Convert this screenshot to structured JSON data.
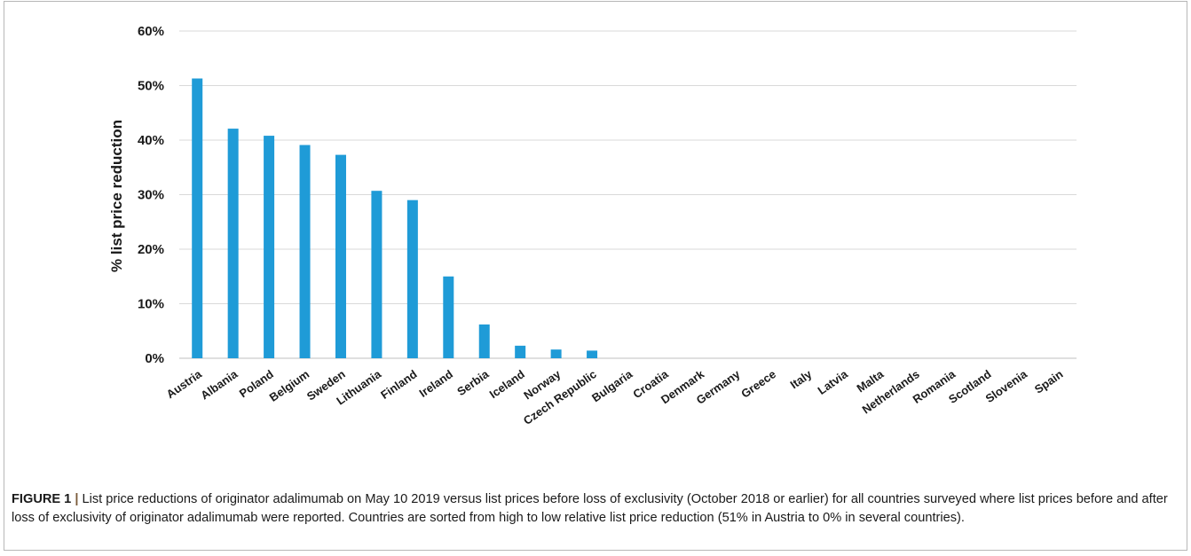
{
  "chart_data": {
    "type": "bar",
    "title": "",
    "xlabel": "",
    "ylabel": "% list price reduction",
    "ylim": [
      0,
      60
    ],
    "yticks": [
      "0%",
      "10%",
      "20%",
      "30%",
      "40%",
      "50%",
      "60%"
    ],
    "categories": [
      "Austria",
      "Albania",
      "Poland",
      "Belgium",
      "Sweden",
      "Lithuania",
      "Finland",
      "Ireland",
      "Serbia",
      "Iceland",
      "Norway",
      "Czech Republic",
      "Bulgaria",
      "Croatia",
      "Denmark",
      "Germany",
      "Greece",
      "Italy",
      "Latvia",
      "Malta",
      "Netherlands",
      "Romania",
      "Scotland",
      "Slovenia",
      "Spain"
    ],
    "values": [
      51.3,
      42.1,
      40.8,
      39.1,
      37.3,
      30.7,
      29.0,
      15.0,
      6.2,
      2.3,
      1.6,
      1.4,
      0,
      0,
      0,
      0,
      0,
      0,
      0,
      0,
      0,
      0,
      0,
      0,
      0
    ],
    "grid": true,
    "bar_color": "#1f9bd7"
  },
  "caption": {
    "label": "FIGURE 1",
    "separator": "|",
    "text": "List price reductions of originator adalimumab on May 10 2019 versus list prices before loss of exclusivity (October 2018 or earlier) for all countries surveyed where list prices before and after loss of exclusivity of originator adalimumab were reported. Countries are sorted from high to low relative list price reduction (51% in Austria to 0% in several countries)."
  }
}
